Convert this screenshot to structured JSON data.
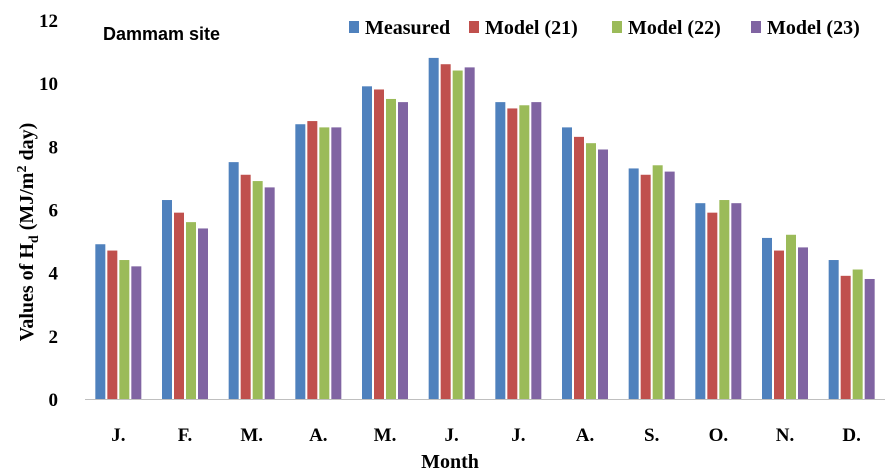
{
  "chart_data": {
    "type": "bar",
    "annotation": "Dammam site",
    "xlabel": "Month",
    "ylabel_parts": [
      "Values of H",
      "d",
      " (MJ/m",
      "2",
      " day)"
    ],
    "categories": [
      "J.",
      "F.",
      "M.",
      "A.",
      "M.",
      "J.",
      "J.",
      "A.",
      "S.",
      "O.",
      "N.",
      "D."
    ],
    "ylim": [
      0,
      12
    ],
    "yticks": [
      0,
      2,
      4,
      6,
      8,
      10,
      12
    ],
    "legend_position": "top",
    "grid": false,
    "series": [
      {
        "name": "Measured",
        "color": "#4f81bd",
        "values": [
          4.9,
          6.3,
          7.5,
          8.7,
          9.9,
          10.8,
          9.4,
          8.6,
          7.3,
          6.2,
          5.1,
          4.4
        ]
      },
      {
        "name": "Model (21)",
        "color": "#c0504d",
        "values": [
          4.7,
          5.9,
          7.1,
          8.8,
          9.8,
          10.6,
          9.2,
          8.3,
          7.1,
          5.9,
          4.7,
          3.9
        ]
      },
      {
        "name": "Model (22)",
        "color": "#9bbb59",
        "values": [
          4.4,
          5.6,
          6.9,
          8.6,
          9.5,
          10.4,
          9.3,
          8.1,
          7.4,
          6.3,
          5.2,
          4.1
        ]
      },
      {
        "name": "Model (23)",
        "color": "#8064a2",
        "values": [
          4.2,
          5.4,
          6.7,
          8.6,
          9.4,
          10.5,
          9.4,
          7.9,
          7.2,
          6.2,
          4.8,
          3.8
        ]
      }
    ]
  }
}
